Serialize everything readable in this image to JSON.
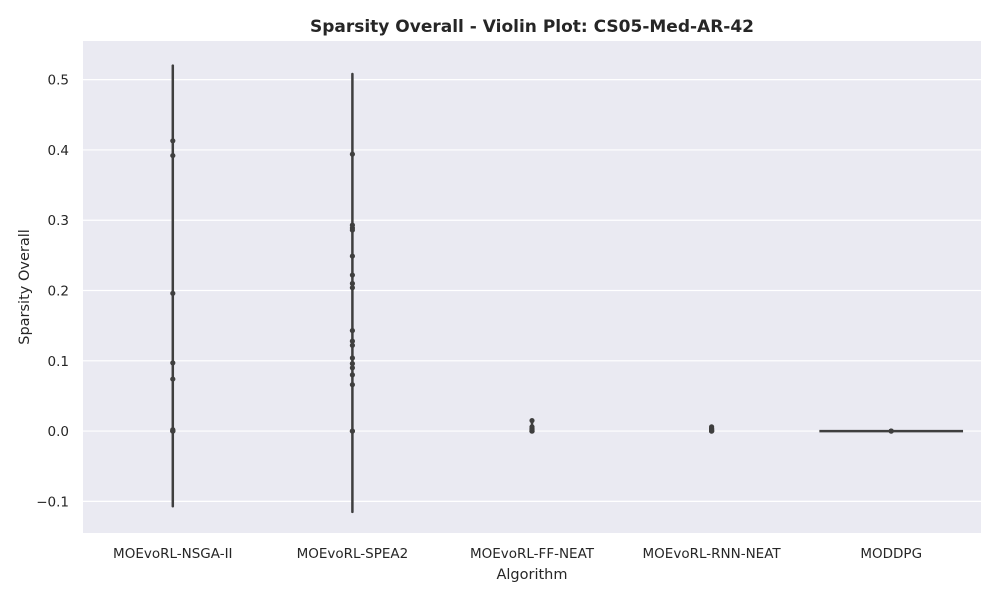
{
  "chart_data": {
    "type": "violin",
    "title": "Sparsity Overall - Violin Plot: CS05-Med-AR-42",
    "xlabel": "Algorithm",
    "ylabel": "Sparsity Overall",
    "ylim": [
      -0.145,
      0.555
    ],
    "yticks": [
      "-0.1",
      "0.0",
      "0.1",
      "0.2",
      "0.3",
      "0.4",
      "0.5"
    ],
    "ytick_values": [
      -0.1,
      0.0,
      0.1,
      0.2,
      0.3,
      0.4,
      0.5
    ],
    "grid": true,
    "categories": [
      "MOEvoRL-NSGA-II",
      "MOEvoRL-SPEA2",
      "MOEvoRL-FF-NEAT",
      "MOEvoRL-RNN-NEAT",
      "MODDPG"
    ],
    "series": [
      {
        "whisker": [
          -0.107,
          0.52
        ],
        "points": [
          0.413,
          0.392,
          0.196,
          0.097,
          0.074,
          0.002,
          0.0,
          0.0,
          0.0
        ]
      },
      {
        "whisker": [
          -0.115,
          0.508
        ],
        "points": [
          0.394,
          0.293,
          0.289,
          0.286,
          0.249,
          0.222,
          0.21,
          0.204,
          0.143,
          0.128,
          0.122,
          0.104,
          0.096,
          0.09,
          0.08,
          0.066,
          0.0,
          0.0
        ]
      },
      {
        "whisker": [
          0.0,
          0.015
        ],
        "points": [
          0.015,
          0.006,
          0.004,
          0.002,
          0.001,
          0.0,
          0.0,
          0.0
        ]
      },
      {
        "whisker": [
          0.0,
          0.006
        ],
        "points": [
          0.006,
          0.004,
          0.003,
          0.002,
          0.001,
          0.0,
          0.0,
          0.0
        ]
      },
      {
        "whisker": [
          0.0,
          0.0
        ],
        "points": [
          0.0,
          0.0,
          0.0
        ],
        "flat_width": 0.8
      }
    ],
    "colors": {
      "background": "#eaeaf2",
      "grid": "#ffffff",
      "mark": "#3f3f3f"
    }
  }
}
